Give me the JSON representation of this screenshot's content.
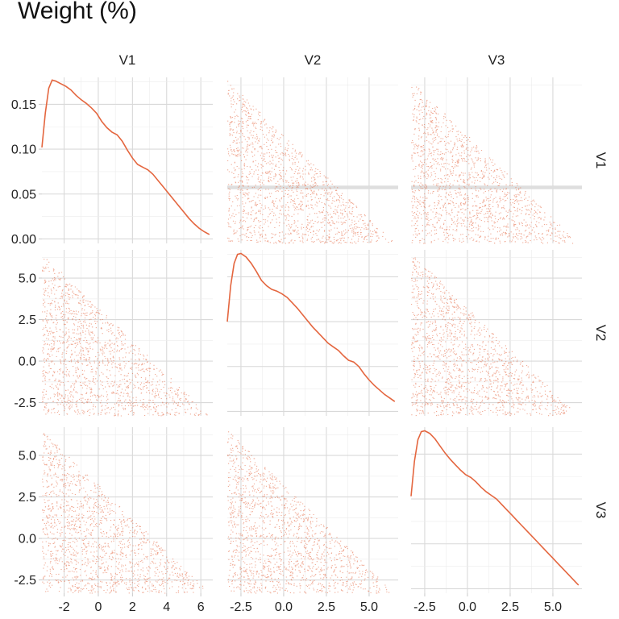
{
  "title": "Weight (%)",
  "colors": {
    "accent": "#e4663f",
    "grid": "#d9d9d9",
    "text": "#222222"
  },
  "chart_data": {
    "type": "scatter",
    "subtype": "pairs-matrix",
    "title": "Weight (%)",
    "variables": [
      "V1",
      "V2",
      "V3"
    ],
    "x_ranges": {
      "V1": [
        -3.3,
        6.7
      ],
      "V2": [
        -3.3,
        6.7
      ],
      "V3": [
        -3.3,
        6.7
      ]
    },
    "y_ranges": {
      "V1": [
        -3.3,
        6.7
      ],
      "V2": [
        -3.3,
        6.7
      ],
      "V3": [
        -3.3,
        6.7
      ]
    },
    "x_ticks": {
      "V1": [
        {
          "v": -2,
          "label": "-2"
        },
        {
          "v": 0,
          "label": "0"
        },
        {
          "v": 2,
          "label": "2"
        },
        {
          "v": 4,
          "label": "4"
        },
        {
          "v": 6,
          "label": "6"
        }
      ],
      "V2": [
        {
          "v": -2.5,
          "label": "-2.5"
        },
        {
          "v": 0,
          "label": "0.0"
        },
        {
          "v": 2.5,
          "label": "2.5"
        },
        {
          "v": 5,
          "label": "5.0"
        }
      ],
      "V3": [
        {
          "v": -2.5,
          "label": "-2.5"
        },
        {
          "v": 0,
          "label": "0.0"
        },
        {
          "v": 2.5,
          "label": "2.5"
        },
        {
          "v": 5,
          "label": "5.0"
        }
      ]
    },
    "y_ticks": {
      "V1": [
        {
          "v": 0,
          "label": "0.00"
        },
        {
          "v": 0.05,
          "label": "0.05"
        },
        {
          "v": 0.1,
          "label": "0.10"
        },
        {
          "v": 0.15,
          "label": "0.15"
        }
      ],
      "V2": [
        {
          "v": -2.5,
          "label": "-2.5"
        },
        {
          "v": 0,
          "label": "0.0"
        },
        {
          "v": 2.5,
          "label": "2.5"
        },
        {
          "v": 5,
          "label": "5.0"
        }
      ],
      "V3": [
        {
          "v": -2.5,
          "label": "-2.5"
        },
        {
          "v": 0,
          "label": "0.0"
        },
        {
          "v": 2.5,
          "label": "2.5"
        },
        {
          "v": 5,
          "label": "5.0"
        }
      ]
    },
    "density_ylim": [
      -0.005,
      0.18
    ],
    "density": {
      "x": [
        -3.3,
        -3.1,
        -2.9,
        -2.7,
        -2.5,
        -2.2,
        -1.9,
        -1.6,
        -1.3,
        -1.0,
        -0.7,
        -0.4,
        -0.1,
        0.2,
        0.5,
        0.8,
        1.1,
        1.4,
        1.7,
        2.0,
        2.3,
        2.6,
        2.9,
        3.2,
        3.5,
        3.8,
        4.1,
        4.4,
        4.7,
        5.0,
        5.3,
        5.6,
        5.9,
        6.2,
        6.5
      ],
      "V1": [
        0.102,
        0.14,
        0.168,
        0.177,
        0.176,
        0.173,
        0.17,
        0.166,
        0.16,
        0.155,
        0.151,
        0.146,
        0.14,
        0.131,
        0.124,
        0.119,
        0.116,
        0.109,
        0.099,
        0.09,
        0.083,
        0.08,
        0.077,
        0.072,
        0.065,
        0.058,
        0.051,
        0.044,
        0.037,
        0.03,
        0.023,
        0.017,
        0.012,
        0.008,
        0.005
      ],
      "V2": [
        0.1,
        0.14,
        0.165,
        0.175,
        0.176,
        0.172,
        0.165,
        0.156,
        0.146,
        0.14,
        0.136,
        0.134,
        0.131,
        0.127,
        0.121,
        0.115,
        0.108,
        0.101,
        0.094,
        0.088,
        0.082,
        0.076,
        0.072,
        0.068,
        0.062,
        0.057,
        0.055,
        0.05,
        0.042,
        0.035,
        0.029,
        0.024,
        0.019,
        0.015,
        0.011
      ],
      "V3": [
        0.103,
        0.142,
        0.166,
        0.175,
        0.176,
        0.173,
        0.167,
        0.159,
        0.151,
        0.144,
        0.138,
        0.132,
        0.127,
        0.124,
        0.119,
        0.113,
        0.108,
        0.104,
        0.1,
        0.094,
        0.088,
        0.082,
        0.076,
        0.07,
        0.064,
        0.058,
        0.052,
        0.046,
        0.04,
        0.034,
        0.028,
        0.022,
        0.016,
        0.01,
        0.004
      ]
    },
    "scatter_region": "uniform points filling the triangle x >= -3.3, y >= -3.3, x + y <= 3.4",
    "scatter_points_per_panel": 1500
  }
}
